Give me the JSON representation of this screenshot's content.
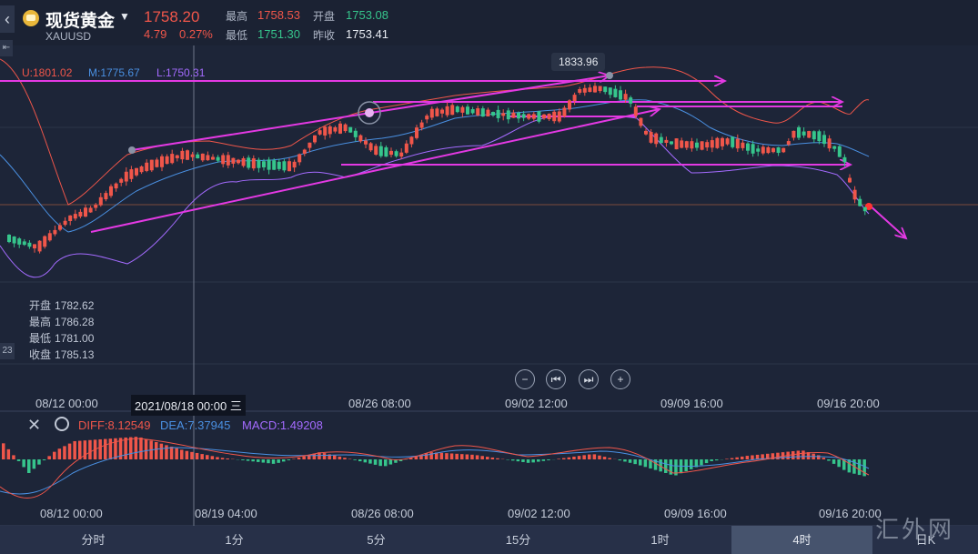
{
  "header": {
    "title": "现货黄金",
    "symbol": "XAUUSD",
    "price": "1758.20",
    "change": "4.79",
    "change_pct": "0.27%",
    "high_label": "最高",
    "high_value": "1758.53",
    "open_label": "开盘",
    "open_value": "1753.08",
    "low_label": "最低",
    "low_value": "1751.30",
    "prev_close_label": "昨收",
    "prev_close_value": "1753.41"
  },
  "indicators": {
    "bands": "U:1801.02",
    "mid": "M:1775.67",
    "lower": "L:1750.31"
  },
  "ohlc_box": {
    "open_label": "开盘",
    "open": "1782.62",
    "high_label": "最高",
    "high": "1786.28",
    "low_label": "最低",
    "low": "1781.00",
    "close_label": "收盘",
    "close": "1785.13"
  },
  "peak_label": "1833.96",
  "side_value": "23",
  "crosshair_label": "2021/08/18 00:00 三",
  "main_x_ticks": [
    "08/12 00:00",
    "08/26 08:00",
    "09/02 12:00",
    "09/09 16:00",
    "09/16 20:00"
  ],
  "controls": {
    "zoom_out": "−",
    "prev": "⏮",
    "next": "⏭",
    "zoom_in": "+"
  },
  "macd": {
    "diff": "DIFF:8.12549",
    "dea": "DEA:7.37945",
    "macd": "MACD:1.49208"
  },
  "macd_x_ticks": [
    "08/12 00:00",
    "08/19 04:00",
    "08/26 08:00",
    "09/02 12:00",
    "09/09 16:00",
    "09/16 20:00"
  ],
  "tabs": [
    "分时",
    "1分",
    "5分",
    "15分",
    "1时",
    "4时",
    "日K"
  ],
  "active_tab": "4时",
  "watermark": "汇外网",
  "colors": {
    "up": "#f0564a",
    "down": "#36c58c",
    "upper_band": "#f0564a",
    "mid_band": "#4a90e2",
    "lower_band": "#a46bff",
    "annotation": "#e339e3"
  }
}
